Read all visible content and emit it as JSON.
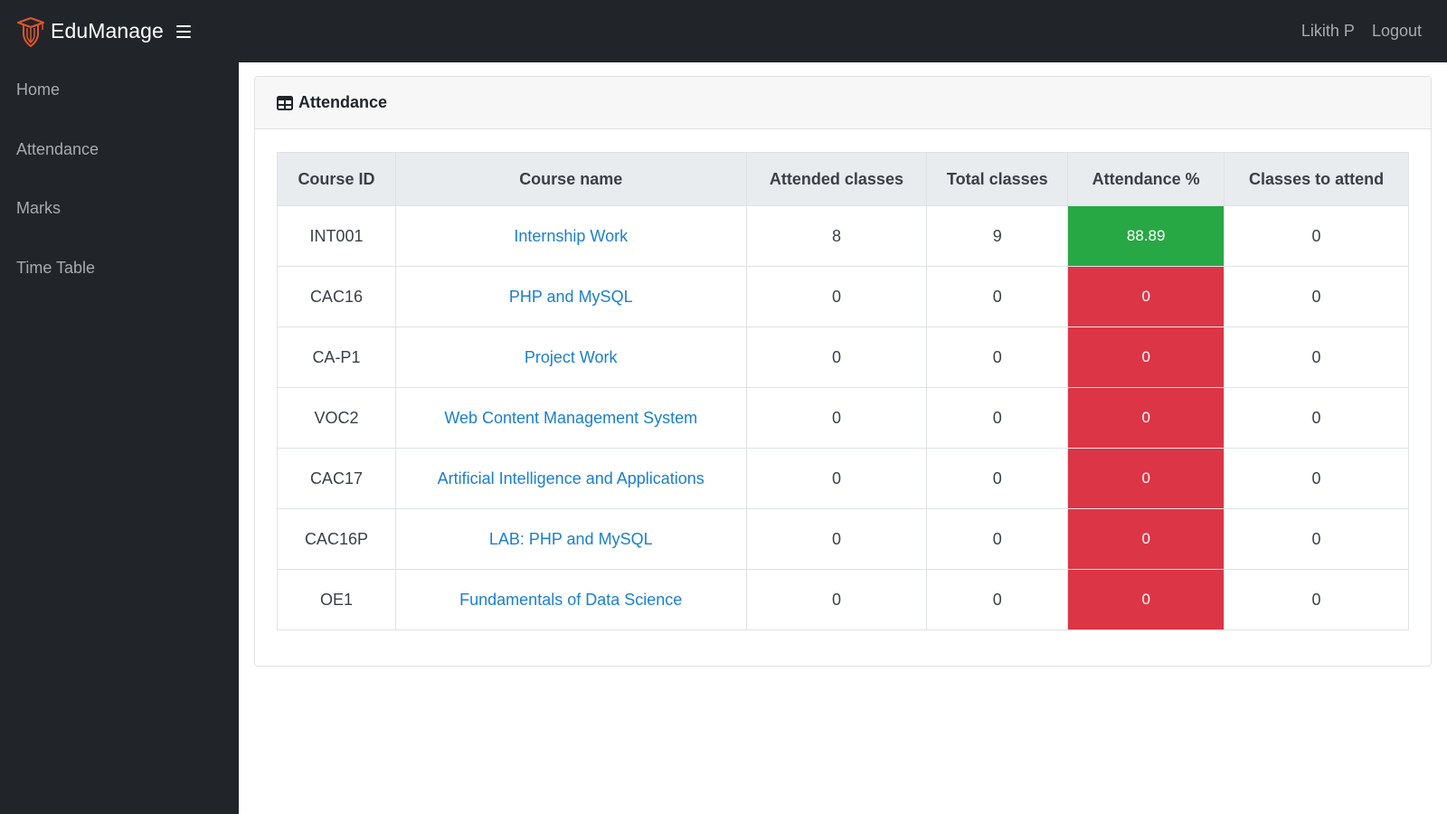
{
  "brand": {
    "name": "EduManage"
  },
  "user": {
    "name": "Likith P",
    "logout_label": "Logout"
  },
  "sidebar": {
    "items": [
      {
        "label": "Home"
      },
      {
        "label": "Attendance"
      },
      {
        "label": "Marks"
      },
      {
        "label": "Time Table"
      }
    ]
  },
  "card": {
    "title": "Attendance"
  },
  "table": {
    "headers": [
      "Course ID",
      "Course name",
      "Attended classes",
      "Total classes",
      "Attendance %",
      "Classes to attend"
    ],
    "rows": [
      {
        "id": "INT001",
        "name": "Internship Work",
        "attended": "8",
        "total": "9",
        "percent": "88.89",
        "status": "good",
        "to_attend": "0"
      },
      {
        "id": "CAC16",
        "name": "PHP and MySQL",
        "attended": "0",
        "total": "0",
        "percent": "0",
        "status": "bad",
        "to_attend": "0"
      },
      {
        "id": "CA-P1",
        "name": "Project Work",
        "attended": "0",
        "total": "0",
        "percent": "0",
        "status": "bad",
        "to_attend": "0"
      },
      {
        "id": "VOC2",
        "name": "Web Content Management System",
        "attended": "0",
        "total": "0",
        "percent": "0",
        "status": "bad",
        "to_attend": "0"
      },
      {
        "id": "CAC17",
        "name": "Artificial Intelligence and Applications",
        "attended": "0",
        "total": "0",
        "percent": "0",
        "status": "bad",
        "to_attend": "0"
      },
      {
        "id": "CAC16P",
        "name": "LAB: PHP and MySQL",
        "attended": "0",
        "total": "0",
        "percent": "0",
        "status": "bad",
        "to_attend": "0"
      },
      {
        "id": "OE1",
        "name": "Fundamentals of Data Science",
        "attended": "0",
        "total": "0",
        "percent": "0",
        "status": "bad",
        "to_attend": "0"
      }
    ]
  },
  "colors": {
    "topbar": "#212529",
    "good": "#28a745",
    "bad": "#dc3545",
    "link": "#1a7fd0",
    "logo": "#e0562b"
  },
  "icons": {
    "brand": "graduation-cap-icon",
    "menu": "hamburger-icon",
    "card": "table-icon"
  }
}
